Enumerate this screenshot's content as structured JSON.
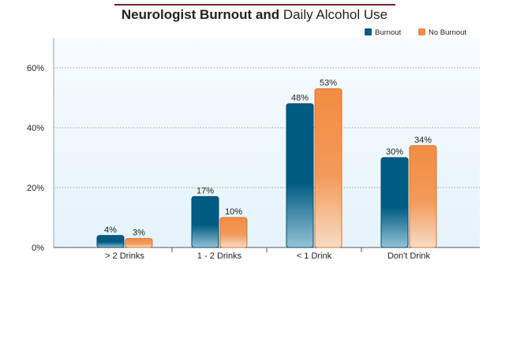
{
  "chart_data": {
    "type": "bar",
    "title_bold": "Neurologist Burnout and",
    "title_rest": "Daily Alcohol Use",
    "categories": [
      "> 2 Drinks",
      "1 - 2 Drinks",
      "< 1 Drink",
      "Don't Drink"
    ],
    "series": [
      {
        "name": "Burnout",
        "values": [
          4,
          17,
          48,
          30
        ],
        "labels": [
          "4%",
          "17%",
          "48%",
          "30%"
        ],
        "color": "#005b82"
      },
      {
        "name": "No Burnout",
        "values": [
          3,
          10,
          53,
          34
        ],
        "labels": [
          "3%",
          "10%",
          "53%",
          "34%"
        ],
        "color": "#f28c42"
      }
    ],
    "yticks": [
      0,
      20,
      40,
      60
    ],
    "ytick_labels": [
      "0%",
      "20%",
      "40%",
      "60%"
    ],
    "ylim": [
      0,
      70
    ],
    "grid": true,
    "legend_position": "top-right"
  }
}
